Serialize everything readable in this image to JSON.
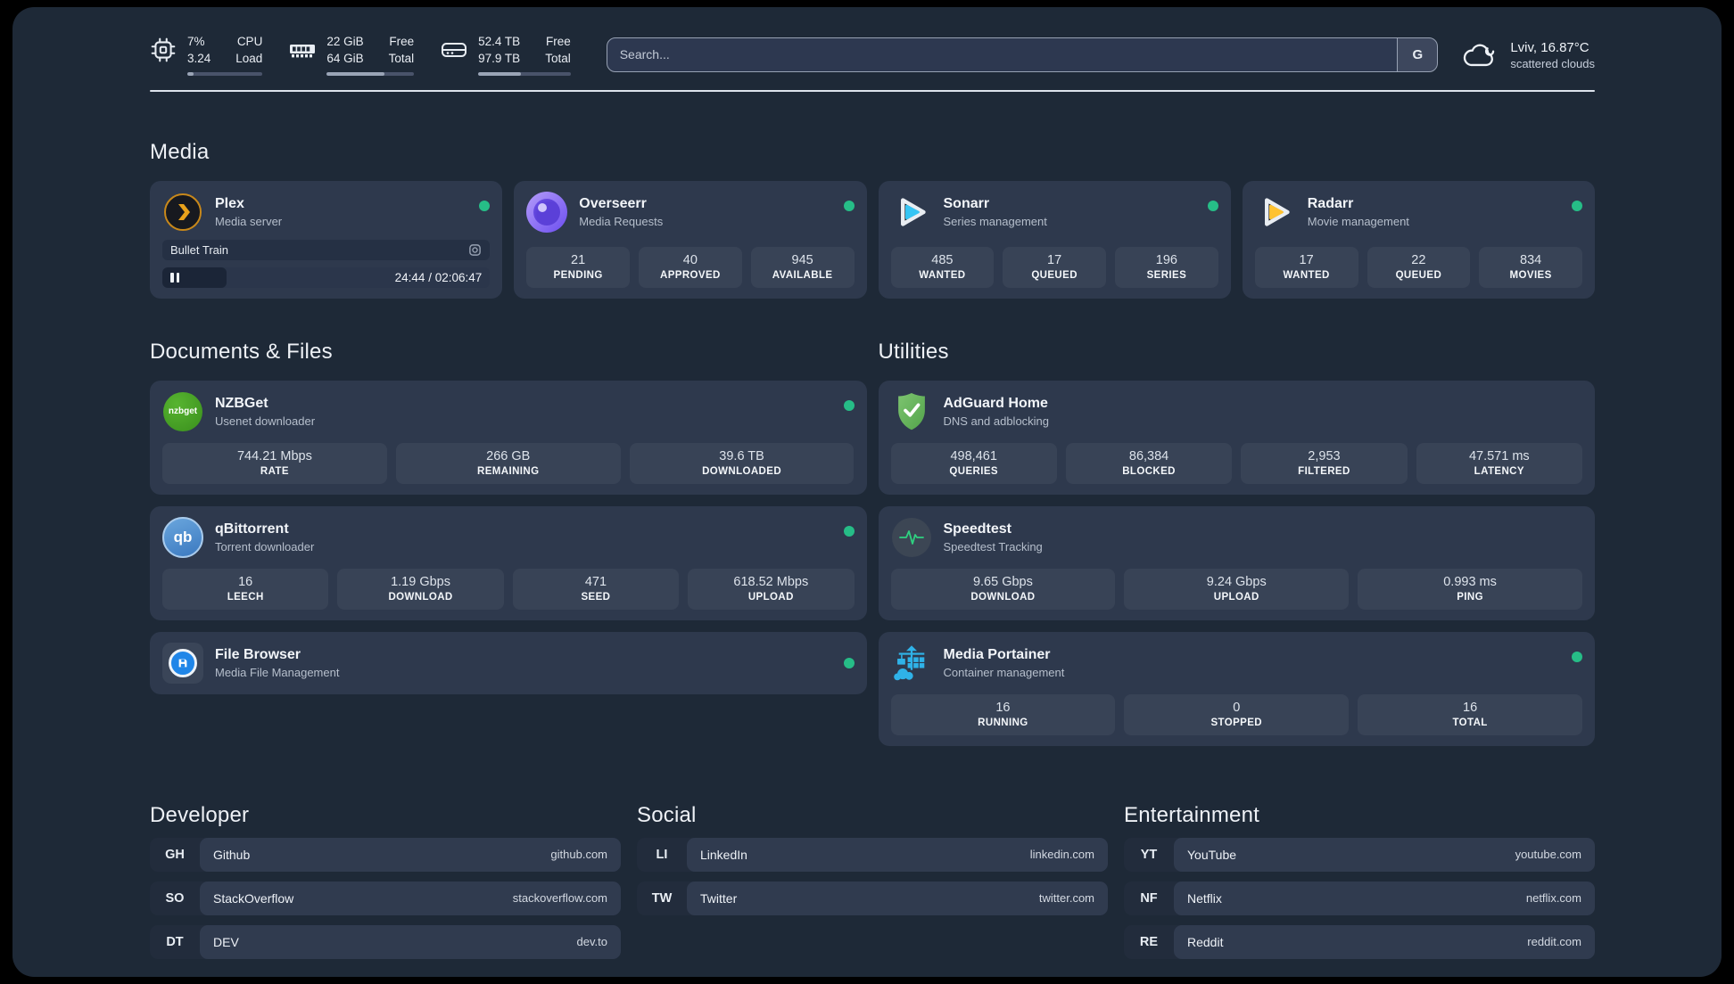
{
  "topbar": {
    "system_stats": [
      {
        "name": "cpu",
        "values": [
          "7%",
          "3.24"
        ],
        "labels": [
          "CPU",
          "Load"
        ],
        "progress_pct": 8
      },
      {
        "name": "memory",
        "values": [
          "22 GiB",
          "64 GiB"
        ],
        "labels": [
          "Free",
          "Total"
        ],
        "progress_pct": 66
      },
      {
        "name": "storage",
        "values": [
          "52.4 TB",
          "97.9 TB"
        ],
        "labels": [
          "Free",
          "Total"
        ],
        "progress_pct": 46
      }
    ],
    "search": {
      "placeholder": "Search...",
      "engine_button": "G"
    },
    "weather": {
      "location_temp": "Lviv, 16.87°C",
      "condition": "scattered clouds"
    }
  },
  "sections": {
    "media": {
      "title": "Media",
      "apps": [
        {
          "name": "Plex",
          "description": "Media server",
          "online": true,
          "now_playing": {
            "title": "Bullet Train",
            "time_display": "24:44 / 02:06:47",
            "progress_pct": 19.5,
            "state": "paused"
          }
        },
        {
          "name": "Overseerr",
          "description": "Media Requests",
          "online": true,
          "stats": [
            {
              "value": "21",
              "label": "PENDING"
            },
            {
              "value": "40",
              "label": "APPROVED"
            },
            {
              "value": "945",
              "label": "AVAILABLE"
            }
          ]
        },
        {
          "name": "Sonarr",
          "description": "Series management",
          "online": true,
          "stats": [
            {
              "value": "485",
              "label": "WANTED"
            },
            {
              "value": "17",
              "label": "QUEUED"
            },
            {
              "value": "196",
              "label": "SERIES"
            }
          ]
        },
        {
          "name": "Radarr",
          "description": "Movie management",
          "online": true,
          "stats": [
            {
              "value": "17",
              "label": "WANTED"
            },
            {
              "value": "22",
              "label": "QUEUED"
            },
            {
              "value": "834",
              "label": "MOVIES"
            }
          ]
        }
      ]
    },
    "documents": {
      "title": "Documents & Files",
      "apps": [
        {
          "name": "NZBGet",
          "description": "Usenet downloader",
          "online": true,
          "logo_text": "nzbget",
          "stats": [
            {
              "value": "744.21 Mbps",
              "label": "RATE"
            },
            {
              "value": "266 GB",
              "label": "REMAINING"
            },
            {
              "value": "39.6 TB",
              "label": "DOWNLOADED"
            }
          ]
        },
        {
          "name": "qBittorrent",
          "description": "Torrent downloader",
          "online": true,
          "logo_text": "qb",
          "stats": [
            {
              "value": "16",
              "label": "LEECH"
            },
            {
              "value": "1.19 Gbps",
              "label": "DOWNLOAD"
            },
            {
              "value": "471",
              "label": "SEED"
            },
            {
              "value": "618.52 Mbps",
              "label": "UPLOAD"
            }
          ]
        },
        {
          "name": "File Browser",
          "description": "Media File Management",
          "online": true
        }
      ]
    },
    "utilities": {
      "title": "Utilities",
      "apps": [
        {
          "name": "AdGuard Home",
          "description": "DNS and adblocking",
          "online": false,
          "stats": [
            {
              "value": "498,461",
              "label": "QUERIES"
            },
            {
              "value": "86,384",
              "label": "BLOCKED"
            },
            {
              "value": "2,953",
              "label": "FILTERED"
            },
            {
              "value": "47.571 ms",
              "label": "LATENCY"
            }
          ]
        },
        {
          "name": "Speedtest",
          "description": "Speedtest Tracking",
          "online": false,
          "stats": [
            {
              "value": "9.65 Gbps",
              "label": "DOWNLOAD"
            },
            {
              "value": "9.24 Gbps",
              "label": "UPLOAD"
            },
            {
              "value": "0.993 ms",
              "label": "PING"
            }
          ]
        },
        {
          "name": "Media Portainer",
          "description": "Container management",
          "online": true,
          "stats": [
            {
              "value": "16",
              "label": "RUNNING"
            },
            {
              "value": "0",
              "label": "STOPPED"
            },
            {
              "value": "16",
              "label": "TOTAL"
            }
          ]
        }
      ]
    },
    "developer": {
      "title": "Developer",
      "links": [
        {
          "initials": "GH",
          "name": "Github",
          "url": "github.com"
        },
        {
          "initials": "SO",
          "name": "StackOverflow",
          "url": "stackoverflow.com"
        },
        {
          "initials": "DT",
          "name": "DEV",
          "url": "dev.to"
        }
      ]
    },
    "social": {
      "title": "Social",
      "links": [
        {
          "initials": "LI",
          "name": "LinkedIn",
          "url": "linkedin.com"
        },
        {
          "initials": "TW",
          "name": "Twitter",
          "url": "twitter.com"
        }
      ]
    },
    "entertainment": {
      "title": "Entertainment",
      "links": [
        {
          "initials": "YT",
          "name": "YouTube",
          "url": "youtube.com"
        },
        {
          "initials": "NF",
          "name": "Netflix",
          "url": "netflix.com"
        },
        {
          "initials": "RE",
          "name": "Reddit",
          "url": "reddit.com"
        }
      ]
    }
  },
  "colors": {
    "status_online": "#26bd87",
    "plex_gold": "#e9a21b",
    "sonarr_cyan": "#35c5f4",
    "radarr_yellow": "#ffc230",
    "adguard_green": "#67b95c",
    "portainer_blue": "#2fb2e8",
    "speedtest_green": "#2fd180"
  }
}
